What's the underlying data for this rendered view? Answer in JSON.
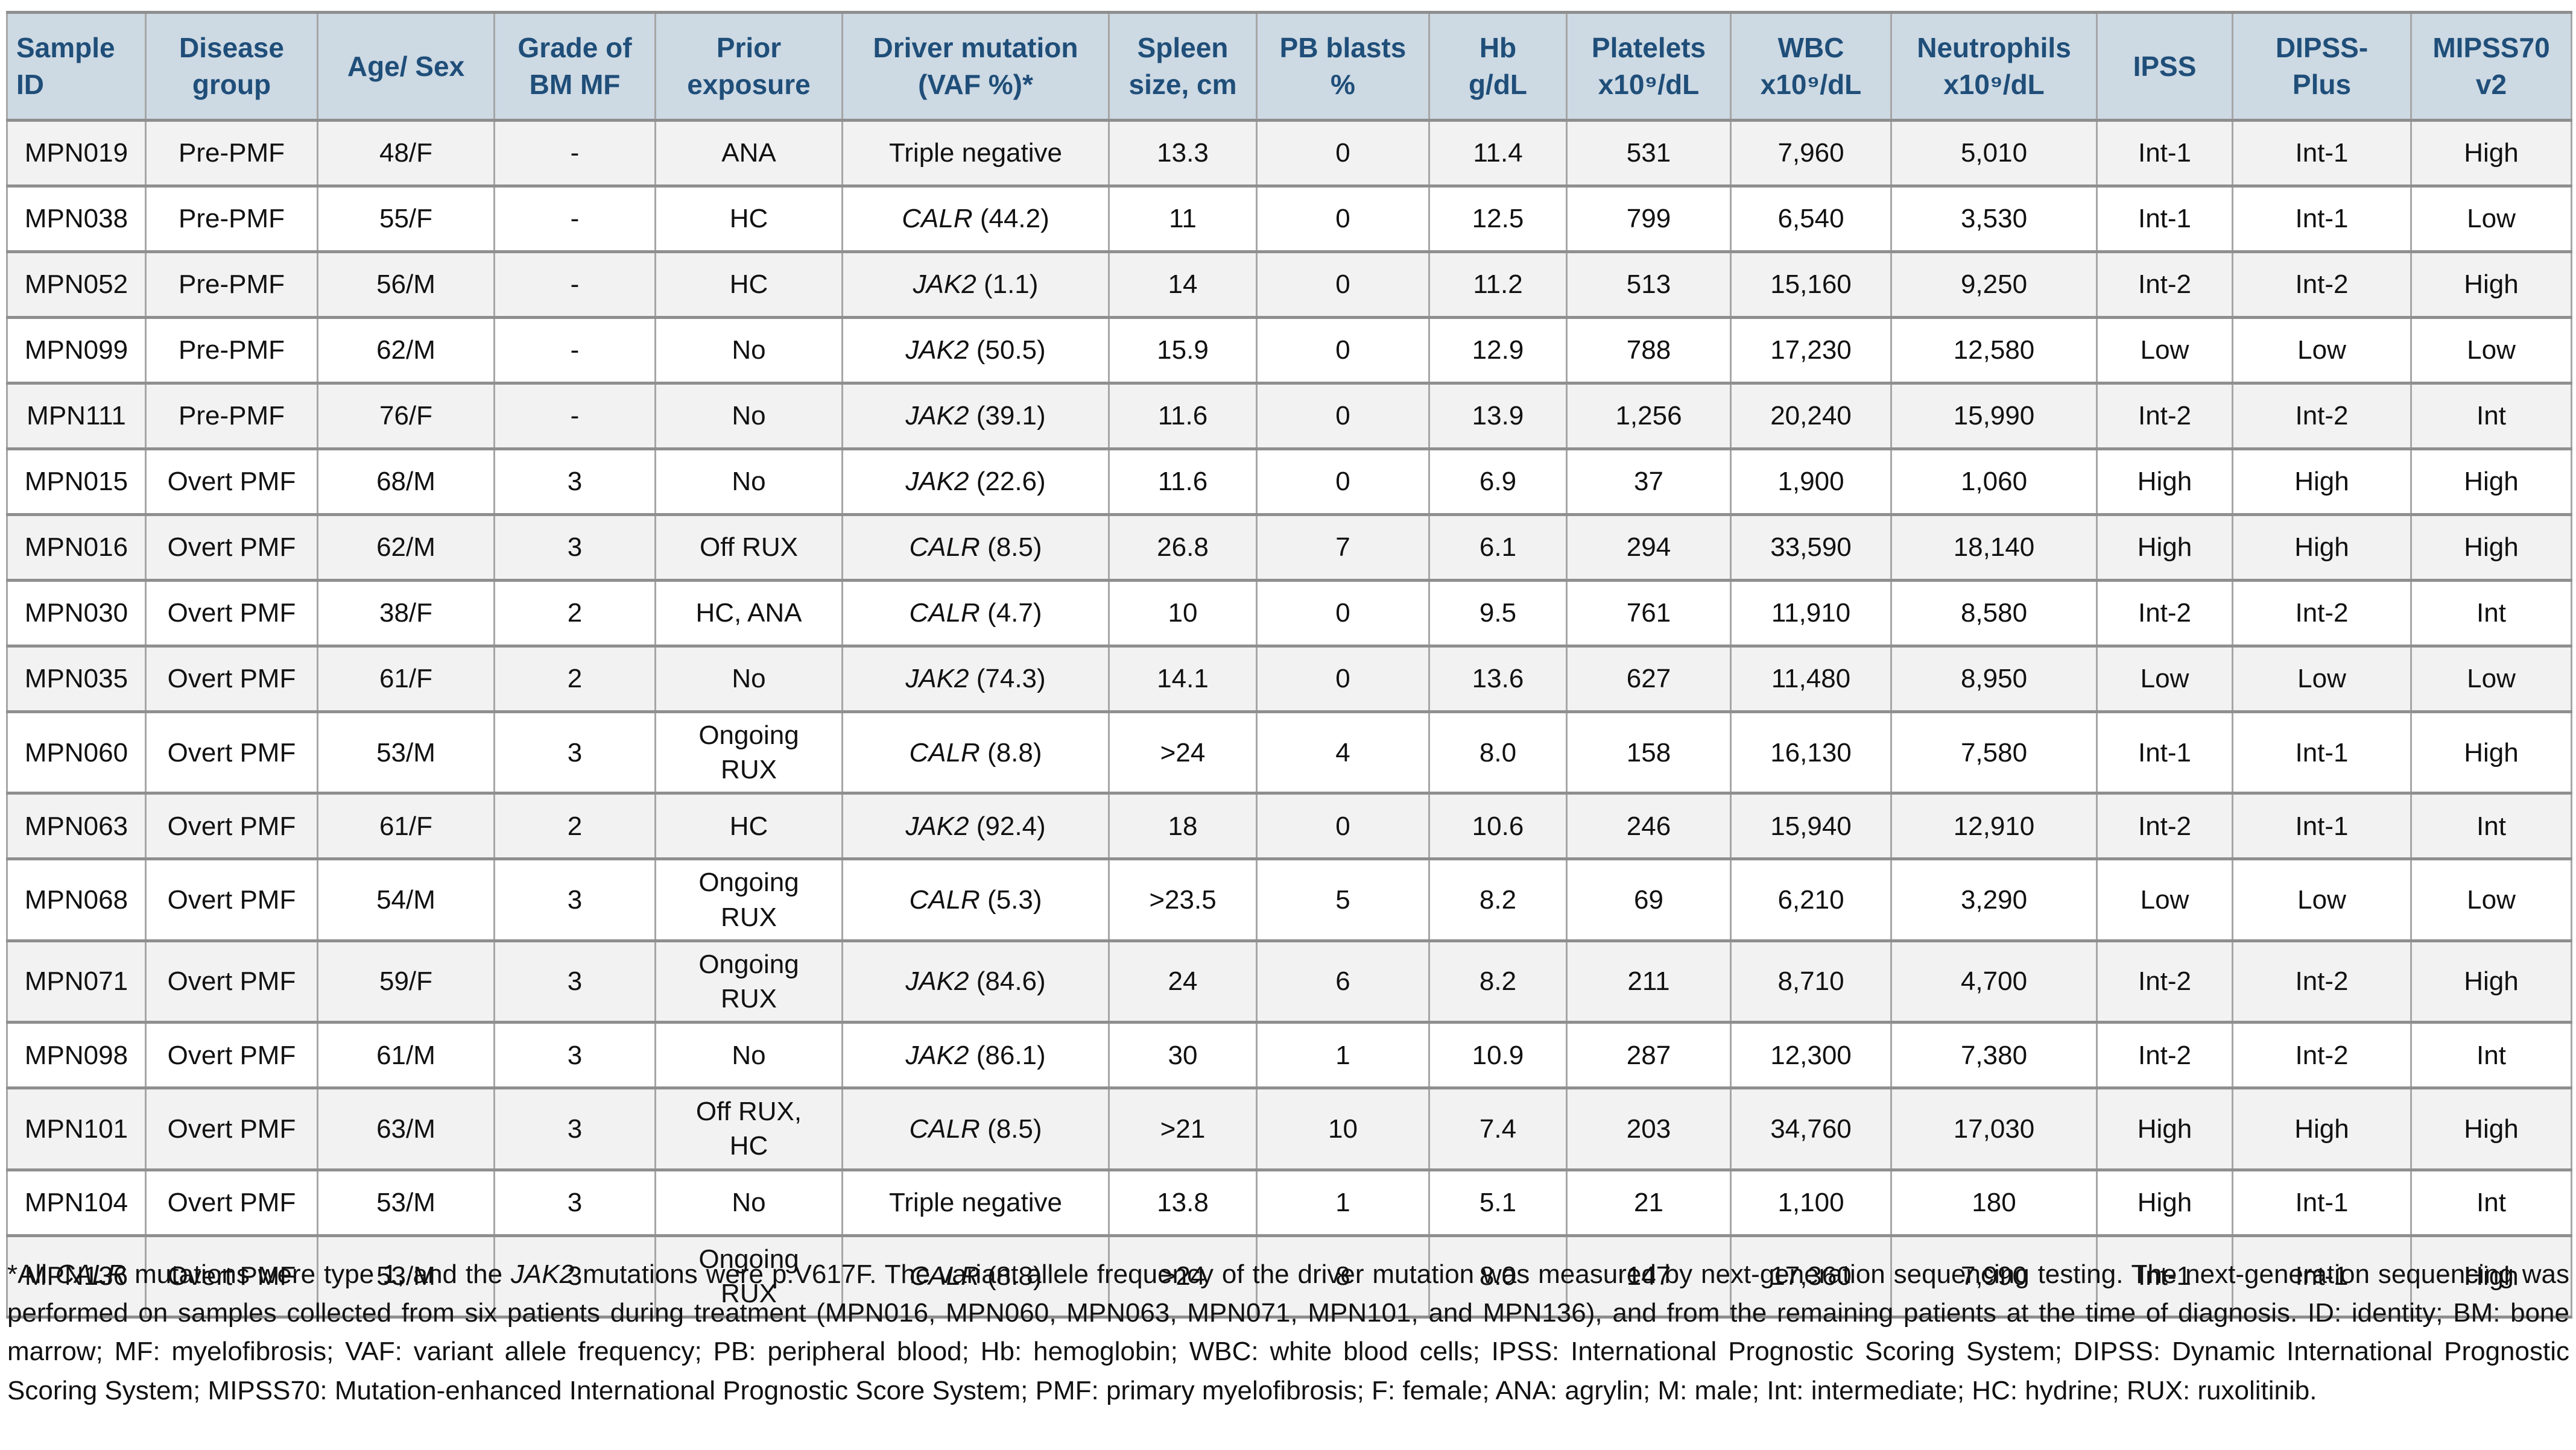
{
  "colors": {
    "header_bg": "#cdd9e3",
    "header_text": "#1f4e79",
    "row_alt": "#f2f2f2",
    "border": "#8f8f8f"
  },
  "table": {
    "columns": [
      {
        "key": "sample_id",
        "label": "Sample\nID"
      },
      {
        "key": "disease_group",
        "label": "Disease\ngroup"
      },
      {
        "key": "age_sex",
        "label": "Age/ Sex"
      },
      {
        "key": "grade",
        "label": "Grade of\nBM MF"
      },
      {
        "key": "prior_exposure",
        "label": "Prior\nexposure"
      },
      {
        "key": "driver",
        "label": "Driver mutation\n(VAF %)*"
      },
      {
        "key": "spleen",
        "label": "Spleen\nsize, cm"
      },
      {
        "key": "pb_blasts",
        "label": "PB blasts\n%"
      },
      {
        "key": "hb",
        "label": "Hb\ng/dL"
      },
      {
        "key": "platelets",
        "label": "Platelets\nx10⁹/dL"
      },
      {
        "key": "wbc",
        "label": "WBC\nx10⁹/dL"
      },
      {
        "key": "neutrophils",
        "label": "Neutrophils\nx10⁹/dL"
      },
      {
        "key": "ipss",
        "label": "IPSS"
      },
      {
        "key": "dipss_plus",
        "label": "DIPSS-\nPlus"
      },
      {
        "key": "mipss70",
        "label": "MIPSS70\nv2"
      }
    ],
    "rows": [
      {
        "sample_id": "MPN019",
        "disease_group": "Pre-PMF",
        "age_sex": "48/F",
        "grade": "-",
        "prior_exposure": "ANA",
        "driver_gene": "",
        "driver_tail": "Triple negative",
        "spleen": "13.3",
        "pb_blasts": "0",
        "hb": "11.4",
        "platelets": "531",
        "wbc": "7,960",
        "neutrophils": "5,010",
        "ipss": "Int-1",
        "dipss_plus": "Int-1",
        "mipss70": "High"
      },
      {
        "sample_id": "MPN038",
        "disease_group": "Pre-PMF",
        "age_sex": "55/F",
        "grade": "-",
        "prior_exposure": "HC",
        "driver_gene": "CALR",
        "driver_tail": " (44.2)",
        "spleen": "11",
        "pb_blasts": "0",
        "hb": "12.5",
        "platelets": "799",
        "wbc": "6,540",
        "neutrophils": "3,530",
        "ipss": "Int-1",
        "dipss_plus": "Int-1",
        "mipss70": "Low"
      },
      {
        "sample_id": "MPN052",
        "disease_group": "Pre-PMF",
        "age_sex": "56/M",
        "grade": "-",
        "prior_exposure": "HC",
        "driver_gene": "JAK2",
        "driver_tail": " (1.1)",
        "spleen": "14",
        "pb_blasts": "0",
        "hb": "11.2",
        "platelets": "513",
        "wbc": "15,160",
        "neutrophils": "9,250",
        "ipss": "Int-2",
        "dipss_plus": "Int-2",
        "mipss70": "High"
      },
      {
        "sample_id": "MPN099",
        "disease_group": "Pre-PMF",
        "age_sex": "62/M",
        "grade": "-",
        "prior_exposure": "No",
        "driver_gene": "JAK2",
        "driver_tail": " (50.5)",
        "spleen": "15.9",
        "pb_blasts": "0",
        "hb": "12.9",
        "platelets": "788",
        "wbc": "17,230",
        "neutrophils": "12,580",
        "ipss": "Low",
        "dipss_plus": "Low",
        "mipss70": "Low"
      },
      {
        "sample_id": "MPN111",
        "disease_group": "Pre-PMF",
        "age_sex": "76/F",
        "grade": "-",
        "prior_exposure": "No",
        "driver_gene": "JAK2",
        "driver_tail": " (39.1)",
        "spleen": "11.6",
        "pb_blasts": "0",
        "hb": "13.9",
        "platelets": "1,256",
        "wbc": "20,240",
        "neutrophils": "15,990",
        "ipss": "Int-2",
        "dipss_plus": "Int-2",
        "mipss70": "Int"
      },
      {
        "sample_id": "MPN015",
        "disease_group": "Overt PMF",
        "age_sex": "68/M",
        "grade": "3",
        "prior_exposure": "No",
        "driver_gene": "JAK2",
        "driver_tail": " (22.6)",
        "spleen": "11.6",
        "pb_blasts": "0",
        "hb": "6.9",
        "platelets": "37",
        "wbc": "1,900",
        "neutrophils": "1,060",
        "ipss": "High",
        "dipss_plus": "High",
        "mipss70": "High"
      },
      {
        "sample_id": "MPN016",
        "disease_group": "Overt PMF",
        "age_sex": "62/M",
        "grade": "3",
        "prior_exposure": "Off RUX",
        "driver_gene": "CALR",
        "driver_tail": " (8.5)",
        "spleen": "26.8",
        "pb_blasts": "7",
        "hb": "6.1",
        "platelets": "294",
        "wbc": "33,590",
        "neutrophils": "18,140",
        "ipss": "High",
        "dipss_plus": "High",
        "mipss70": "High"
      },
      {
        "sample_id": "MPN030",
        "disease_group": "Overt PMF",
        "age_sex": "38/F",
        "grade": "2",
        "prior_exposure": "HC, ANA",
        "driver_gene": "CALR",
        "driver_tail": " (4.7)",
        "spleen": "10",
        "pb_blasts": "0",
        "hb": "9.5",
        "platelets": "761",
        "wbc": "11,910",
        "neutrophils": "8,580",
        "ipss": "Int-2",
        "dipss_plus": "Int-2",
        "mipss70": "Int"
      },
      {
        "sample_id": "MPN035",
        "disease_group": "Overt PMF",
        "age_sex": "61/F",
        "grade": "2",
        "prior_exposure": "No",
        "driver_gene": "JAK2",
        "driver_tail": " (74.3)",
        "spleen": "14.1",
        "pb_blasts": "0",
        "hb": "13.6",
        "platelets": "627",
        "wbc": "11,480",
        "neutrophils": "8,950",
        "ipss": "Low",
        "dipss_plus": "Low",
        "mipss70": "Low"
      },
      {
        "sample_id": "MPN060",
        "disease_group": "Overt PMF",
        "age_sex": "53/M",
        "grade": "3",
        "prior_exposure": "Ongoing\nRUX",
        "driver_gene": "CALR",
        "driver_tail": " (8.8)",
        "spleen": ">24",
        "pb_blasts": "4",
        "hb": "8.0",
        "platelets": "158",
        "wbc": "16,130",
        "neutrophils": "7,580",
        "ipss": "Int-1",
        "dipss_plus": "Int-1",
        "mipss70": "High"
      },
      {
        "sample_id": "MPN063",
        "disease_group": "Overt PMF",
        "age_sex": "61/F",
        "grade": "2",
        "prior_exposure": "HC",
        "driver_gene": "JAK2",
        "driver_tail": " (92.4)",
        "spleen": "18",
        "pb_blasts": "0",
        "hb": "10.6",
        "platelets": "246",
        "wbc": "15,940",
        "neutrophils": "12,910",
        "ipss": "Int-2",
        "dipss_plus": "Int-1",
        "mipss70": "Int"
      },
      {
        "sample_id": "MPN068",
        "disease_group": "Overt PMF",
        "age_sex": "54/M",
        "grade": "3",
        "prior_exposure": "Ongoing\nRUX",
        "driver_gene": "CALR",
        "driver_tail": " (5.3)",
        "spleen": ">23.5",
        "pb_blasts": "5",
        "hb": "8.2",
        "platelets": "69",
        "wbc": "6,210",
        "neutrophils": "3,290",
        "ipss": "Low",
        "dipss_plus": "Low",
        "mipss70": "Low"
      },
      {
        "sample_id": "MPN071",
        "disease_group": "Overt PMF",
        "age_sex": "59/F",
        "grade": "3",
        "prior_exposure": "Ongoing\nRUX",
        "driver_gene": "JAK2",
        "driver_tail": " (84.6)",
        "spleen": "24",
        "pb_blasts": "6",
        "hb": "8.2",
        "platelets": "211",
        "wbc": "8,710",
        "neutrophils": "4,700",
        "ipss": "Int-2",
        "dipss_plus": "Int-2",
        "mipss70": "High"
      },
      {
        "sample_id": "MPN098",
        "disease_group": "Overt PMF",
        "age_sex": "61/M",
        "grade": "3",
        "prior_exposure": "No",
        "driver_gene": "JAK2",
        "driver_tail": " (86.1)",
        "spleen": "30",
        "pb_blasts": "1",
        "hb": "10.9",
        "platelets": "287",
        "wbc": "12,300",
        "neutrophils": "7,380",
        "ipss": "Int-2",
        "dipss_plus": "Int-2",
        "mipss70": "Int"
      },
      {
        "sample_id": "MPN101",
        "disease_group": "Overt PMF",
        "age_sex": "63/M",
        "grade": "3",
        "prior_exposure": "Off RUX,\nHC",
        "driver_gene": "CALR",
        "driver_tail": " (8.5)",
        "spleen": ">21",
        "pb_blasts": "10",
        "hb": "7.4",
        "platelets": "203",
        "wbc": "34,760",
        "neutrophils": "17,030",
        "ipss": "High",
        "dipss_plus": "High",
        "mipss70": "High"
      },
      {
        "sample_id": "MPN104",
        "disease_group": "Overt PMF",
        "age_sex": "53/M",
        "grade": "3",
        "prior_exposure": "No",
        "driver_gene": "",
        "driver_tail": "Triple negative",
        "spleen": "13.8",
        "pb_blasts": "1",
        "hb": "5.1",
        "platelets": "21",
        "wbc": "1,100",
        "neutrophils": "180",
        "ipss": "High",
        "dipss_plus": "Int-1",
        "mipss70": "Int"
      },
      {
        "sample_id": "MPN136",
        "disease_group": "Overt PMF",
        "age_sex": "53/M",
        "grade": "3",
        "prior_exposure": "Ongoing\nRUX",
        "driver_gene": "CALR",
        "driver_tail": " (8.8)",
        "spleen": ">24",
        "pb_blasts": "8",
        "hb": "8.0",
        "platelets": "147",
        "wbc": "17,360",
        "neutrophils": "7,990",
        "ipss": "Int-1",
        "dipss_plus": "Int-1",
        "mipss70": "High"
      }
    ]
  },
  "footnote": {
    "segments": [
      {
        "text": " *All ",
        "italic": false
      },
      {
        "text": "CALR",
        "italic": true
      },
      {
        "text": " mutations were type 1, and the ",
        "italic": false
      },
      {
        "text": "JAK2",
        "italic": true
      },
      {
        "text": " mutations were p.V617F. The variant allele frequency of the driver mutation was measured by next-generation sequencing testing. The next-generation sequencing was performed on samples collected from six patients during treatment (MPN016, MPN060, MPN063, MPN071, MPN101, and MPN136), and from the remaining patients at the time of diagnosis. ID: identity; BM: bone marrow; MF: myelofibrosis; VAF: variant allele frequency; PB: peripheral blood; Hb: hemoglobin; WBC: white blood cells; IPSS: International Prognostic Scoring System; DIPSS: Dynamic International Prognostic Scoring System; MIPSS70: Mutation-enhanced International Prognostic Score System; PMF: primary myelofibrosis; F: female; ANA: agrylin; M: male; Int: intermediate; HC: hydrine; RUX: ruxolitinib.",
        "italic": false
      }
    ]
  }
}
